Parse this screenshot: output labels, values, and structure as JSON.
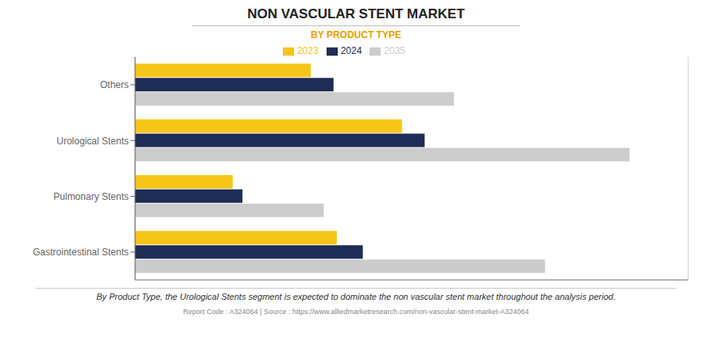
{
  "chart_data": {
    "type": "bar",
    "orientation": "horizontal",
    "title": "NON VASCULAR STENT MARKET",
    "subtitle": "BY PRODUCT TYPE",
    "annotations": [
      "By Product Type, the Urological Stents segment is expected to dominate the non vascular stent market throughout the analysis period.",
      "Report Code : A324064  |  Source : https://www.alliedmarketresearch.com/non-vascular-stent-market-A324064"
    ],
    "categories": [
      "Gastrointestinal Stents",
      "Pulmonary Stents",
      "Urological Stents",
      "Others"
    ],
    "series": [
      {
        "name": "2023",
        "color": "#F5C518",
        "values": [
          3.1,
          1.5,
          4.1,
          2.7
        ]
      },
      {
        "name": "2024",
        "color": "#1E2D55",
        "values": [
          3.5,
          1.65,
          4.45,
          3.05
        ]
      },
      {
        "name": "2035",
        "color": "#CCCCCC",
        "values": [
          6.3,
          2.9,
          7.6,
          4.9
        ]
      }
    ],
    "xlim": [
      0,
      8.5
    ],
    "xticks": [
      0,
      2.125,
      4.25,
      6.375,
      8.5
    ],
    "grid": true,
    "legend": "top",
    "tick_labels": "y"
  }
}
